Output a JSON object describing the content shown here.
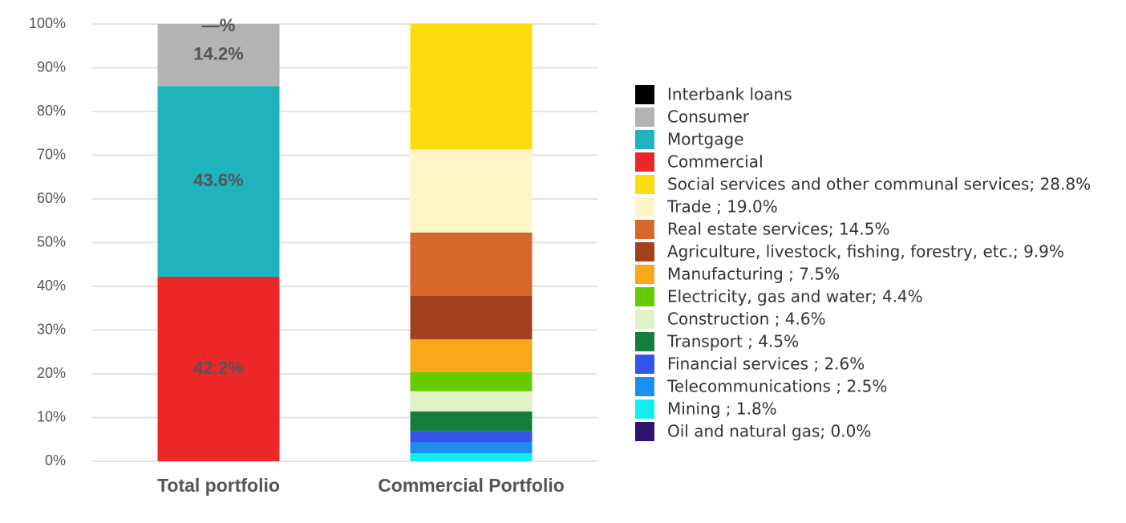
{
  "chart_data": {
    "type": "stacked_bar",
    "categories": [
      "Total portfolio",
      "Commercial Portfolio"
    ],
    "ylim": [
      0,
      100
    ],
    "yticks": [
      {
        "value": 0,
        "label": "0%"
      },
      {
        "value": 10,
        "label": "10%"
      },
      {
        "value": 20,
        "label": "20%"
      },
      {
        "value": 30,
        "label": "30%"
      },
      {
        "value": 40,
        "label": "40%"
      },
      {
        "value": 50,
        "label": "50%"
      },
      {
        "value": 60,
        "label": "60%"
      },
      {
        "value": 70,
        "label": "70%"
      },
      {
        "value": 80,
        "label": "80%"
      },
      {
        "value": 90,
        "label": "90%"
      },
      {
        "value": 100,
        "label": "100%"
      }
    ],
    "grid": true,
    "legend": "right",
    "series": [
      {
        "name": "Interbank loans",
        "color": "#000000",
        "values": [
          null,
          null
        ],
        "value_labels": [
          "—%",
          null
        ]
      },
      {
        "name": "Consumer",
        "color": "#b3b3b3",
        "values": [
          14.2,
          null
        ],
        "value_labels": [
          "14.2%",
          null
        ]
      },
      {
        "name": "Mortgage",
        "color": "#1fb3bd",
        "values": [
          43.6,
          null
        ],
        "value_labels": [
          "43.6%",
          null
        ]
      },
      {
        "name": "Commercial",
        "color": "#ec2727",
        "values": [
          42.2,
          null
        ],
        "value_labels": [
          "42.2%",
          null
        ]
      },
      {
        "name": "Social services and other communal services; 28.8%",
        "color": "#fcdc0e",
        "values": [
          null,
          28.8
        ]
      },
      {
        "name": "Trade ; 19.0%",
        "color": "#fdf5c6",
        "values": [
          null,
          19.0
        ]
      },
      {
        "name": "Real estate services; 14.5%",
        "color": "#d6682c",
        "values": [
          null,
          14.5
        ]
      },
      {
        "name": "Agriculture, livestock, fishing, forestry, etc.; 9.9%",
        "color": "#a3411f",
        "values": [
          null,
          9.9
        ]
      },
      {
        "name": "Manufacturing ; 7.5%",
        "color": "#f8a81b",
        "values": [
          null,
          7.5
        ]
      },
      {
        "name": "Electricity, gas and water; 4.4%",
        "color": "#66cc00",
        "values": [
          null,
          4.4
        ]
      },
      {
        "name": "Construction ; 4.6%",
        "color": "#dff2c8",
        "values": [
          null,
          4.6
        ]
      },
      {
        "name": "Transport ; 4.5%",
        "color": "#147e3e",
        "values": [
          null,
          4.5
        ]
      },
      {
        "name": "Financial services ; 2.6%",
        "color": "#3355ee",
        "values": [
          null,
          2.6
        ]
      },
      {
        "name": "Telecommunications ; 2.5%",
        "color": "#1a8ff0",
        "values": [
          null,
          2.5
        ]
      },
      {
        "name": "Mining ; 1.8%",
        "color": "#11eef2",
        "values": [
          null,
          1.8
        ]
      },
      {
        "name": "Oil and natural gas; 0.0%",
        "color": "#2e1470",
        "values": [
          null,
          0.0
        ]
      }
    ]
  }
}
